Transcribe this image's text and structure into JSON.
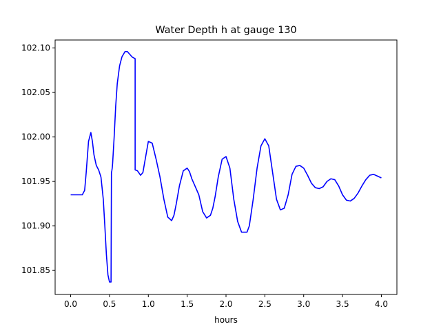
{
  "chart_data": {
    "type": "line",
    "title": "Water Depth h at gauge 130",
    "xlabel": "hours",
    "ylabel": "",
    "xlim": [
      -0.2,
      4.2
    ],
    "ylim": [
      101.823,
      102.109
    ],
    "xticks": [
      0.0,
      0.5,
      1.0,
      1.5,
      2.0,
      2.5,
      3.0,
      3.5,
      4.0
    ],
    "xtick_labels": [
      "0.0",
      "0.5",
      "1.0",
      "1.5",
      "2.0",
      "2.5",
      "3.0",
      "3.5",
      "4.0"
    ],
    "yticks": [
      101.85,
      101.9,
      101.95,
      102.0,
      102.05,
      102.1
    ],
    "ytick_labels": [
      "101.85",
      "101.90",
      "101.95",
      "102.00",
      "102.05",
      "102.10"
    ],
    "grid": false,
    "series": [
      {
        "color": "#0000ff",
        "x": [
          0.0,
          0.1,
          0.15,
          0.18,
          0.2,
          0.23,
          0.26,
          0.28,
          0.3,
          0.33,
          0.36,
          0.39,
          0.42,
          0.44,
          0.46,
          0.48,
          0.5,
          0.52,
          0.525,
          0.53,
          0.535,
          0.54,
          0.56,
          0.58,
          0.6,
          0.63,
          0.66,
          0.7,
          0.73,
          0.76,
          0.79,
          0.83,
          0.83,
          0.83,
          0.86,
          0.9,
          0.93,
          0.96,
          1.0,
          1.05,
          1.1,
          1.15,
          1.2,
          1.25,
          1.3,
          1.33,
          1.36,
          1.4,
          1.45,
          1.5,
          1.53,
          1.56,
          1.6,
          1.65,
          1.7,
          1.75,
          1.8,
          1.83,
          1.86,
          1.9,
          1.95,
          2.0,
          2.05,
          2.1,
          2.15,
          2.2,
          2.27,
          2.3,
          2.35,
          2.4,
          2.45,
          2.5,
          2.55,
          2.6,
          2.65,
          2.7,
          2.75,
          2.8,
          2.85,
          2.9,
          2.95,
          3.0,
          3.05,
          3.1,
          3.15,
          3.2,
          3.25,
          3.3,
          3.35,
          3.4,
          3.45,
          3.5,
          3.55,
          3.6,
          3.65,
          3.7,
          3.75,
          3.8,
          3.85,
          3.9,
          3.95,
          4.0
        ],
        "y": [
          101.935,
          101.935,
          101.935,
          101.94,
          101.96,
          101.995,
          102.005,
          101.995,
          101.98,
          101.968,
          101.963,
          101.955,
          101.93,
          101.9,
          101.868,
          101.845,
          101.837,
          101.837,
          101.96,
          101.962,
          101.965,
          101.97,
          102.0,
          102.035,
          102.06,
          102.08,
          102.09,
          102.096,
          102.096,
          102.093,
          102.09,
          102.088,
          102.04,
          101.963,
          101.962,
          101.957,
          101.96,
          101.975,
          101.995,
          101.993,
          101.975,
          101.955,
          101.93,
          101.91,
          101.906,
          101.912,
          101.925,
          101.945,
          101.962,
          101.965,
          101.961,
          101.953,
          101.945,
          101.935,
          101.916,
          101.909,
          101.912,
          101.92,
          101.933,
          101.955,
          101.975,
          101.978,
          101.965,
          101.93,
          101.905,
          101.893,
          101.893,
          101.9,
          101.93,
          101.965,
          101.99,
          101.998,
          101.99,
          101.96,
          101.93,
          101.918,
          101.92,
          101.935,
          101.958,
          101.967,
          101.968,
          101.965,
          101.957,
          101.948,
          101.943,
          101.942,
          101.944,
          101.95,
          101.953,
          101.952,
          101.945,
          101.935,
          101.929,
          101.928,
          101.931,
          101.937,
          101.945,
          101.952,
          101.957,
          101.958,
          101.956,
          101.954
        ]
      }
    ]
  }
}
